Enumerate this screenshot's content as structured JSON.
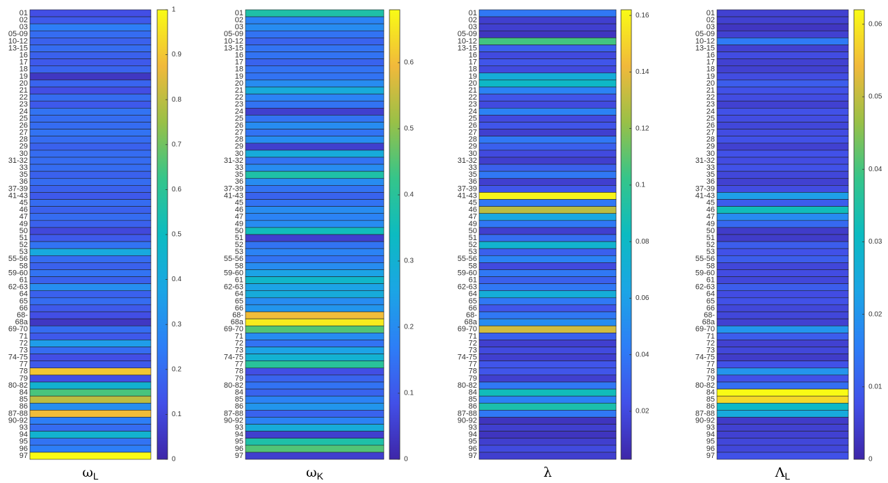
{
  "chart_data": [
    {
      "type": "heatmap",
      "xlabel": "ω",
      "xlabel_subscript": "L",
      "categories": [
        "01",
        "02",
        "03",
        "05-09",
        "10-12",
        "13-15",
        "16",
        "17",
        "18",
        "19",
        "20",
        "21",
        "22",
        "23",
        "24",
        "25",
        "26",
        "27",
        "28",
        "29",
        "30",
        "31-32",
        "33",
        "35",
        "36",
        "37-39",
        "41-43",
        "45",
        "46",
        "47",
        "49",
        "50",
        "51",
        "52",
        "53",
        "55-56",
        "58",
        "59-60",
        "61",
        "62-63",
        "64",
        "65",
        "66",
        "68-",
        "68a",
        "69-70",
        "71",
        "72",
        "73",
        "74-75",
        "77",
        "78",
        "79",
        "80-82",
        "84",
        "85",
        "86",
        "87-88",
        "90-92",
        "93",
        "94",
        "95",
        "96",
        "97"
      ],
      "values": [
        0.12,
        0.15,
        0.25,
        0.2,
        0.17,
        0.2,
        0.17,
        0.15,
        0.18,
        0.05,
        0.18,
        0.12,
        0.2,
        0.15,
        0.22,
        0.2,
        0.2,
        0.22,
        0.2,
        0.17,
        0.2,
        0.2,
        0.2,
        0.17,
        0.2,
        0.17,
        0.15,
        0.2,
        0.17,
        0.2,
        0.17,
        0.1,
        0.15,
        0.22,
        0.4,
        0.2,
        0.17,
        0.22,
        0.17,
        0.3,
        0.17,
        0.2,
        0.15,
        0.12,
        0.05,
        0.2,
        0.15,
        0.35,
        0.2,
        0.12,
        0.15,
        0.9,
        0.12,
        0.45,
        0.65,
        0.8,
        0.3,
        0.88,
        0.25,
        0.2,
        0.45,
        0.22,
        0.25,
        1.0
      ],
      "ylim": [
        0,
        1
      ],
      "yticks": [
        0,
        0.1,
        0.2,
        0.3,
        0.4,
        0.5,
        0.6,
        0.7,
        0.8,
        0.9,
        1
      ],
      "colormap": [
        "#3e26a8",
        "#4250e8",
        "#2d7ef7",
        "#1ba5e5",
        "#0cbbc1",
        "#35c58a",
        "#99c047",
        "#f1b93b",
        "#f9fb15"
      ]
    },
    {
      "type": "heatmap",
      "xlabel": "ω",
      "xlabel_subscript": "K",
      "categories": [
        "01",
        "02",
        "03",
        "05-09",
        "10-12",
        "13-15",
        "16",
        "17",
        "18",
        "19",
        "20",
        "21",
        "22",
        "23",
        "24",
        "25",
        "26",
        "27",
        "28",
        "29",
        "30",
        "31-32",
        "33",
        "35",
        "36",
        "37-39",
        "41-43",
        "45",
        "46",
        "47",
        "49",
        "50",
        "51",
        "52",
        "53",
        "55-56",
        "58",
        "59-60",
        "61",
        "62-63",
        "64",
        "65",
        "66",
        "68-",
        "68a",
        "69-70",
        "71",
        "72",
        "73",
        "74-75",
        "77",
        "78",
        "79",
        "80-82",
        "84",
        "85",
        "86",
        "87-88",
        "90-92",
        "93",
        "94",
        "95",
        "96",
        "97"
      ],
      "values": [
        0.38,
        0.18,
        0.2,
        0.15,
        0.12,
        0.15,
        0.15,
        0.12,
        0.15,
        0.15,
        0.2,
        0.28,
        0.18,
        0.15,
        0.05,
        0.15,
        0.2,
        0.15,
        0.2,
        0.05,
        0.28,
        0.15,
        0.2,
        0.38,
        0.2,
        0.15,
        0.12,
        0.15,
        0.2,
        0.18,
        0.2,
        0.35,
        0.05,
        0.15,
        0.18,
        0.15,
        0.2,
        0.25,
        0.32,
        0.25,
        0.28,
        0.2,
        0.22,
        0.6,
        0.66,
        0.45,
        0.2,
        0.15,
        0.25,
        0.3,
        0.4,
        0.08,
        0.12,
        0.15,
        0.12,
        0.18,
        0.22,
        0.12,
        0.18,
        0.28,
        0.05,
        0.38,
        0.45,
        0.05
      ],
      "ylim": [
        0,
        0.68
      ],
      "yticks": [
        0,
        0.1,
        0.2,
        0.3,
        0.4,
        0.5,
        0.6
      ],
      "colormap": [
        "#3e26a8",
        "#4250e8",
        "#2d7ef7",
        "#1ba5e5",
        "#0cbbc1",
        "#35c58a",
        "#99c047",
        "#f1b93b",
        "#f9fb15"
      ]
    },
    {
      "type": "heatmap",
      "xlabel": "λ",
      "categories": [
        "01",
        "02",
        "03",
        "05-09",
        "10-12",
        "13-15",
        "16",
        "17",
        "18",
        "19",
        "20",
        "21",
        "22",
        "23",
        "24",
        "25",
        "26",
        "27",
        "28",
        "29",
        "30",
        "31-32",
        "33",
        "35",
        "36",
        "37-39",
        "41-43",
        "45",
        "46",
        "47",
        "49",
        "50",
        "51",
        "52",
        "53",
        "55-56",
        "58",
        "59-60",
        "61",
        "62-63",
        "64",
        "65",
        "66",
        "68-",
        "68a",
        "69-70",
        "71",
        "72",
        "73",
        "74-75",
        "77",
        "78",
        "79",
        "80-82",
        "84",
        "85",
        "86",
        "87-88",
        "90-92",
        "93",
        "94",
        "95",
        "96",
        "97"
      ],
      "values": [
        0.04,
        0.015,
        0.015,
        0.01,
        0.105,
        0.03,
        0.02,
        0.025,
        0.02,
        0.07,
        0.08,
        0.045,
        0.025,
        0.02,
        0.045,
        0.02,
        0.025,
        0.015,
        0.04,
        0.03,
        0.02,
        0.015,
        0.03,
        0.04,
        0.015,
        0.025,
        0.16,
        0.04,
        0.13,
        0.065,
        0.04,
        0.015,
        0.035,
        0.075,
        0.03,
        0.045,
        0.02,
        0.04,
        0.03,
        0.04,
        0.07,
        0.04,
        0.025,
        0.04,
        0.05,
        0.135,
        0.03,
        0.015,
        0.02,
        0.015,
        0.025,
        0.025,
        0.015,
        0.04,
        0.085,
        0.045,
        0.09,
        0.04,
        0.01,
        0.015,
        0.01,
        0.015,
        0.02,
        0.015
      ],
      "ylim": [
        0.003,
        0.162
      ],
      "yticks": [
        0.02,
        0.04,
        0.06,
        0.08,
        0.1,
        0.12,
        0.14,
        0.16
      ],
      "colormap": [
        "#3e26a8",
        "#4250e8",
        "#2d7ef7",
        "#1ba5e5",
        "#0cbbc1",
        "#35c58a",
        "#99c047",
        "#f1b93b",
        "#f9fb15"
      ]
    },
    {
      "type": "heatmap",
      "xlabel": "Λ",
      "xlabel_subscript": "L",
      "categories": [
        "01",
        "02",
        "03",
        "05-09",
        "10-12",
        "13-15",
        "16",
        "17",
        "18",
        "19",
        "20",
        "21",
        "22",
        "23",
        "24",
        "25",
        "26",
        "27",
        "28",
        "29",
        "30",
        "31-32",
        "33",
        "35",
        "36",
        "37-39",
        "41-43",
        "45",
        "46",
        "47",
        "49",
        "50",
        "51",
        "52",
        "53",
        "55-56",
        "58",
        "59-60",
        "61",
        "62-63",
        "64",
        "65",
        "66",
        "68-",
        "68a",
        "69-70",
        "71",
        "72",
        "73",
        "74-75",
        "77",
        "78",
        "79",
        "80-82",
        "84",
        "85",
        "86",
        "87-88",
        "90-92",
        "93",
        "94",
        "95",
        "96",
        "97"
      ],
      "values": [
        0.005,
        0.005,
        0.003,
        0.005,
        0.015,
        0.005,
        0.007,
        0.005,
        0.005,
        0.007,
        0.01,
        0.008,
        0.007,
        0.005,
        0.008,
        0.007,
        0.006,
        0.007,
        0.008,
        0.005,
        0.008,
        0.007,
        0.008,
        0.006,
        0.005,
        0.007,
        0.022,
        0.01,
        0.032,
        0.018,
        0.012,
        0.004,
        0.004,
        0.01,
        0.008,
        0.01,
        0.006,
        0.007,
        0.006,
        0.01,
        0.007,
        0.008,
        0.006,
        0.006,
        0.005,
        0.02,
        0.01,
        0.005,
        0.006,
        0.004,
        0.008,
        0.02,
        0.008,
        0.013,
        0.062,
        0.058,
        0.03,
        0.025,
        0.004,
        0.005,
        0.005,
        0.006,
        0.006,
        0.008
      ],
      "ylim": [
        0,
        0.062
      ],
      "yticks": [
        0,
        0.01,
        0.02,
        0.03,
        0.04,
        0.05,
        0.06
      ],
      "colormap": [
        "#3e26a8",
        "#4250e8",
        "#2d7ef7",
        "#1ba5e5",
        "#0cbbc1",
        "#35c58a",
        "#99c047",
        "#f1b93b",
        "#f9fb15"
      ]
    }
  ]
}
